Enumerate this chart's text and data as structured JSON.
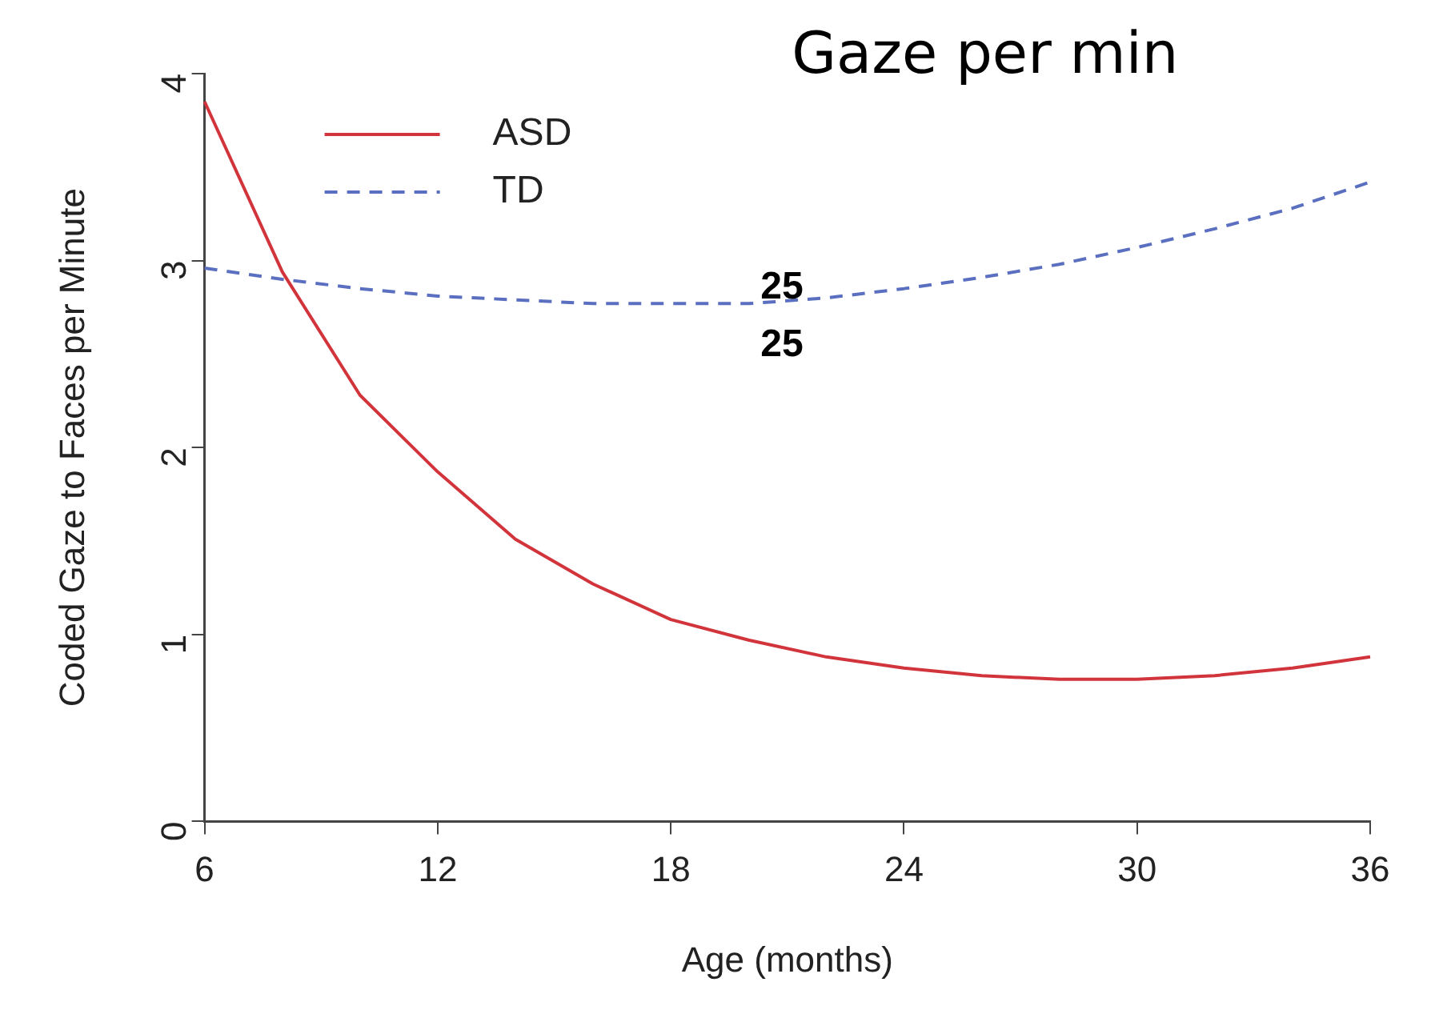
{
  "chart_data": {
    "type": "line",
    "title": "Gaze per min",
    "xlabel": "Age (months)",
    "ylabel": "Coded Gaze to Faces per Minute",
    "annotations": [
      "25",
      "25"
    ],
    "x": [
      6,
      8,
      10,
      12,
      14,
      16,
      18,
      20,
      22,
      24,
      26,
      28,
      30,
      32,
      34,
      36
    ],
    "xlim": [
      6,
      36
    ],
    "xticks": [
      6,
      12,
      18,
      24,
      30,
      36
    ],
    "ylim": [
      0,
      4
    ],
    "yticks": [
      0,
      1,
      2,
      3,
      4
    ],
    "grid": false,
    "legend": "top left",
    "marker": "none",
    "series": [
      {
        "name": "ASD",
        "color": "#d2343c",
        "line_style": "solid",
        "values": [
          3.85,
          2.94,
          2.28,
          1.87,
          1.51,
          1.27,
          1.08,
          0.97,
          0.88,
          0.82,
          0.78,
          0.76,
          0.76,
          0.78,
          0.82,
          0.88
        ]
      },
      {
        "name": "TD",
        "color": "#5a6fbf",
        "line_style": "dashed",
        "values": [
          2.96,
          2.9,
          2.85,
          2.81,
          2.79,
          2.77,
          2.77,
          2.77,
          2.8,
          2.85,
          2.91,
          2.98,
          3.07,
          3.17,
          3.28,
          3.42
        ]
      }
    ]
  }
}
